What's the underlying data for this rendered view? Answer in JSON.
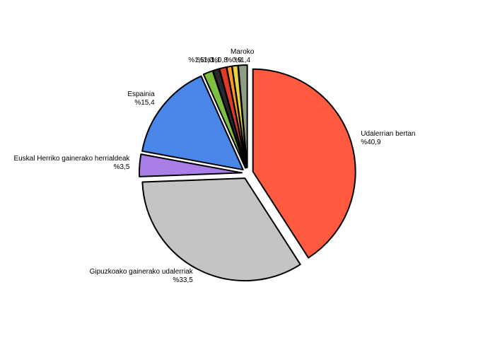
{
  "chart_data": {
    "type": "pie",
    "categories": [
      "Udalerrian bertan",
      "Gipuzkoako gainerako udalerriak",
      "Euskal Herriko gainerako herrialdeak",
      "Espainia",
      null,
      null,
      null,
      null,
      null,
      "Maroko"
    ],
    "values": [
      40.9,
      33.5,
      3.5,
      15.4,
      1.5,
      1.0,
      1.1,
      0.8,
      0.9,
      1.4
    ],
    "value_labels": [
      "%40,9",
      "%33,5",
      "%3,5",
      "%15,4",
      "%1,5",
      "%1,0",
      "%1,1",
      "%0,8",
      "%0,9",
      "%1,4"
    ],
    "colors": [
      "#ff5a3f",
      "#c4c4c4",
      "#a97ee8",
      "#4a86e8",
      "#7fbf3f",
      "#2a2a2a",
      "#e23a2a",
      "#ff9a20",
      "#e8d43a",
      "#8e9c82"
    ]
  }
}
